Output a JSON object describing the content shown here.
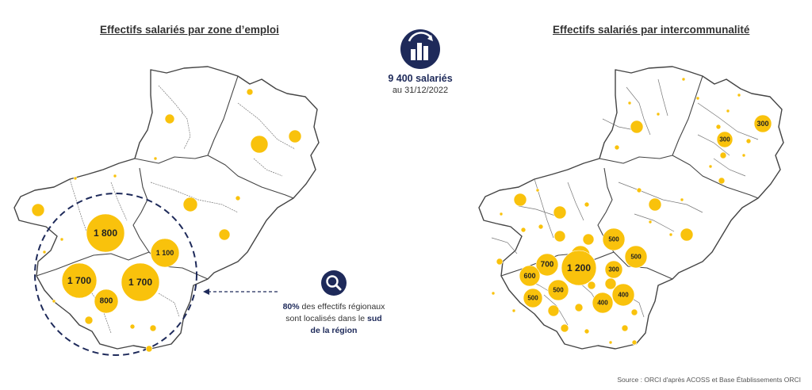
{
  "titles": {
    "left": "Effectifs salariés par zone d’emploi",
    "right": "Effectifs salariés par intercommunalité"
  },
  "kpi": {
    "icon": "building-chart-icon",
    "value": "9 400 salariés",
    "date": "au 31/12/2022"
  },
  "callout": {
    "icon": "search-magnifier-icon",
    "text_pre": "80%",
    "text_mid": " des effectifs régionaux sont localisés dans le ",
    "text_bold": "sud de la région"
  },
  "source": "Source : ORCI d'après ACOSS et Base Établissements ORCI",
  "colors": {
    "bubble": "#f9c20c",
    "border": "#444444",
    "dash": "#1e2a5a",
    "accent": "#1e2a5a"
  },
  "chart_data": [
    {
      "type": "map-bubble",
      "title": "Effectifs salariés par zone d’emploi",
      "labeled_values": [
        "1 800",
        "1 100",
        "1 700",
        "1 700",
        "800"
      ]
    },
    {
      "type": "map-bubble",
      "title": "Effectifs salariés par intercommunalité",
      "labeled_values": [
        "300",
        "300",
        "500",
        "500",
        "700",
        "400",
        "1 200",
        "300",
        "600",
        "500",
        "500",
        "400",
        "400"
      ]
    }
  ]
}
